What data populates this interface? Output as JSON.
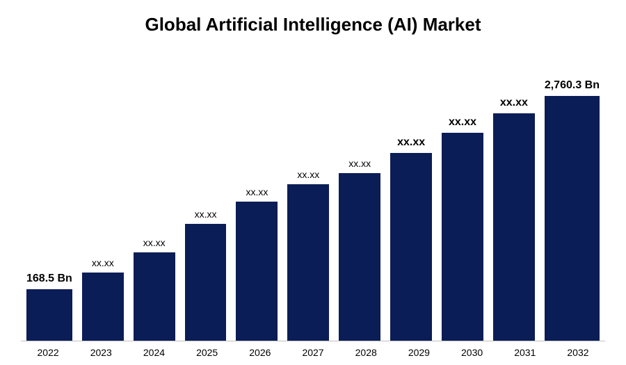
{
  "chart": {
    "type": "bar",
    "title": "Global Artificial Intelligence (AI) Market",
    "title_fontsize": 26,
    "title_fontweight": 700,
    "background_color": "#ffffff",
    "bar_color": "#0a1d56",
    "axis_line_color": "#bfbfbf",
    "xtick_fontsize": 14,
    "label_fontsize_small": 14,
    "label_fontsize_big": 16,
    "ylim": [
      0,
      3000
    ],
    "bars": [
      {
        "year": "2022",
        "label": "168.5 Bn",
        "label_style": "big",
        "height_pct": 18
      },
      {
        "year": "2023",
        "label": "xx.xx",
        "label_style": "small",
        "height_pct": 24
      },
      {
        "year": "2024",
        "label": "xx.xx",
        "label_style": "small",
        "height_pct": 31
      },
      {
        "year": "2025",
        "label": "xx.xx",
        "label_style": "small",
        "height_pct": 41
      },
      {
        "year": "2026",
        "label": "xx.xx",
        "label_style": "small",
        "height_pct": 49
      },
      {
        "year": "2027",
        "label": "xx.xx",
        "label_style": "small",
        "height_pct": 55
      },
      {
        "year": "2028",
        "label": "xx.xx",
        "label_style": "small",
        "height_pct": 59
      },
      {
        "year": "2029",
        "label": "xx.xx",
        "label_style": "big",
        "height_pct": 66
      },
      {
        "year": "2030",
        "label": "xx.xx",
        "label_style": "big",
        "height_pct": 73
      },
      {
        "year": "2031",
        "label": "xx.xx",
        "label_style": "big",
        "height_pct": 80
      },
      {
        "year": "2032",
        "label": "2,760.3 Bn",
        "label_style": "big",
        "height_pct": 86
      }
    ]
  }
}
